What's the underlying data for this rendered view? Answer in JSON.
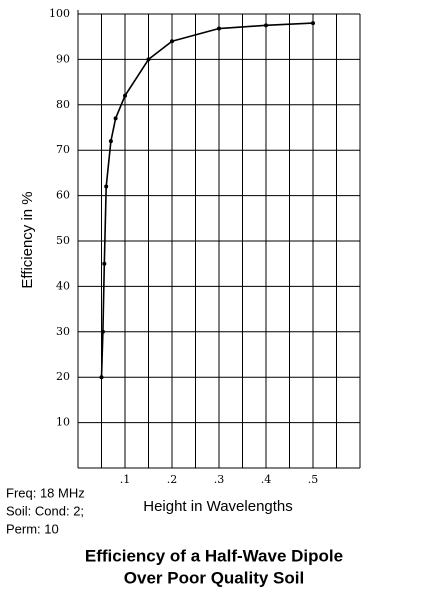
{
  "chart_data": {
    "type": "line",
    "title": [
      "Efficiency of a Half-Wave Dipole",
      "Over Poor Quality Soil"
    ],
    "x_label": "Height in Wavelengths",
    "y_label": "Efficiency in %",
    "notes": [
      "Freq: 18 MHz",
      "Soil: Cond: 2;",
      "Perm: 10"
    ],
    "x": [
      0.05,
      0.053,
      0.056,
      0.06,
      0.07,
      0.08,
      0.1,
      0.15,
      0.2,
      0.3,
      0.4,
      0.5
    ],
    "series": [
      {
        "name": "Efficiency",
        "color": "#000000",
        "values": [
          20,
          30,
          45,
          62,
          72,
          77,
          82,
          90,
          94,
          96.8,
          97.5,
          98
        ]
      }
    ],
    "xlim": [
      0,
      0.6
    ],
    "xticks": [
      {
        "value": 0.1,
        "label": ".1"
      },
      {
        "value": 0.2,
        "label": ".2"
      },
      {
        "value": 0.3,
        "label": ".3"
      },
      {
        "value": 0.4,
        "label": ".4"
      },
      {
        "value": 0.5,
        "label": ".5"
      }
    ],
    "x_minor_ticks": [
      0.05,
      0.15,
      0.25,
      0.35,
      0.45,
      0.55,
      0.6
    ],
    "ylim": [
      0,
      100
    ],
    "yticks": [
      10,
      20,
      30,
      40,
      50,
      60,
      70,
      80,
      90,
      100
    ],
    "grid": true
  }
}
